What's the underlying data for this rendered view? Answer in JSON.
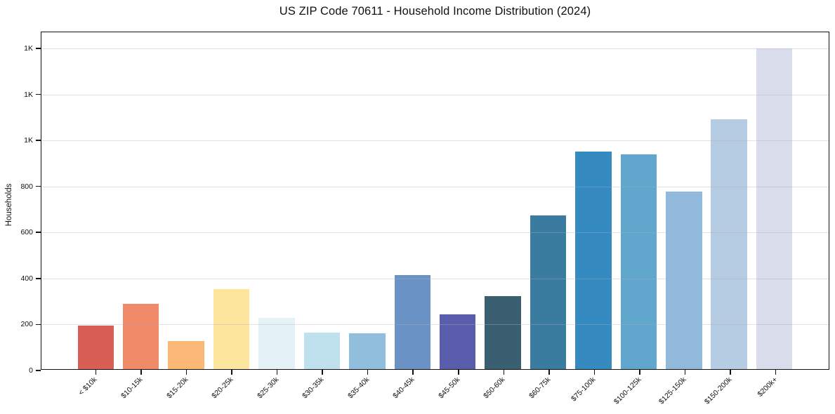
{
  "title": "US ZIP Code 70611 - Household Income Distribution (2024)",
  "chart_data": {
    "type": "bar",
    "title": "US ZIP Code 70611 - Household Income Distribution (2024)",
    "xlabel": "",
    "ylabel": "Households",
    "categories": [
      "< $10k",
      "$10-15k",
      "$15-20k",
      "$20-25k",
      "$25-30k",
      "$30-35k",
      "$35-40k",
      "$40-45k",
      "$45-50k",
      "$50-60k",
      "$60-75k",
      "$75-100k",
      "$100-125k",
      "$125-150k",
      "$150-200k",
      "$200k+"
    ],
    "values": [
      190,
      285,
      122,
      350,
      225,
      158,
      155,
      410,
      240,
      318,
      672,
      950,
      938,
      775,
      1090,
      1400
    ],
    "bar_colors": [
      "#d75f55",
      "#f08a68",
      "#fbb877",
      "#fde59e",
      "#e4f1f6",
      "#bfe1ed",
      "#92bedd",
      "#6b92c5",
      "#5a5dac",
      "#3a5f71",
      "#3a7ba0",
      "#358bbf",
      "#61a7cd",
      "#90b9db",
      "#b6cce3",
      "#d9dcea"
    ],
    "ylim": [
      0,
      1470
    ],
    "xlim": [
      -1.2,
      16.2
    ],
    "bar_width": 0.8,
    "yticks": [
      {
        "value": 0,
        "label": "0"
      },
      {
        "value": 200,
        "label": "200"
      },
      {
        "value": 400,
        "label": "400"
      },
      {
        "value": 600,
        "label": "600"
      },
      {
        "value": 800,
        "label": "800"
      },
      {
        "value": 1000,
        "label": "1K"
      },
      {
        "value": 1200,
        "label": "1K"
      },
      {
        "value": 1400,
        "label": "1K"
      }
    ],
    "grid": "horizontal",
    "grid_over_bars": true,
    "legend": "none",
    "background_color": "#ffffff",
    "text_color": "#111111"
  }
}
